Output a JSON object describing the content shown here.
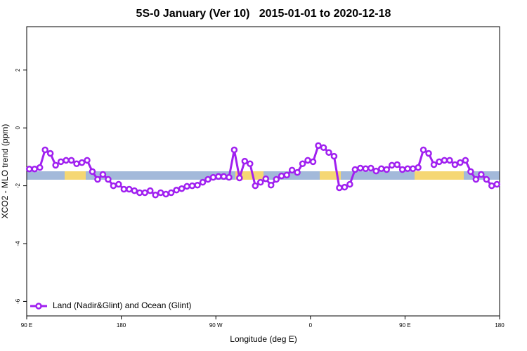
{
  "chart_data": {
    "type": "line",
    "title": "5S-0 January (Ver 10)   2015-01-01 to 2020-12-18",
    "xlabel": "Longitude (deg E)",
    "ylabel": "XCO2 - MLO trend (ppm)",
    "xlim": [
      90,
      540
    ],
    "xticks": [
      {
        "value": 90,
        "label": "90 E"
      },
      {
        "value": 180,
        "label": "180"
      },
      {
        "value": 270,
        "label": "90 W"
      },
      {
        "value": 360,
        "label": "0"
      },
      {
        "value": 450,
        "label": "90 E"
      },
      {
        "value": 540,
        "label": "180"
      }
    ],
    "ylim": [
      -6.5,
      3.5
    ],
    "yticks": [
      -6,
      -4,
      -2,
      0,
      2
    ],
    "legend": "bottomleft",
    "x": [
      92.5,
      97.5,
      102.5,
      107.5,
      112.5,
      117.5,
      122.5,
      127.5,
      132.5,
      137.5,
      142.5,
      147.5,
      152.5,
      157.5,
      162.5,
      167.5,
      172.5,
      177.5,
      182.5,
      187.5,
      192.5,
      197.5,
      202.5,
      207.5,
      212.5,
      217.5,
      222.5,
      227.5,
      232.5,
      237.5,
      242.5,
      247.5,
      252.5,
      257.5,
      262.5,
      267.5,
      272.5,
      277.5,
      282.5,
      287.5,
      292.5,
      297.5,
      302.5,
      307.5,
      312.5,
      317.5,
      322.5,
      327.5,
      332.5,
      337.5,
      342.5,
      347.5,
      352.5,
      357.5,
      362.5,
      367.5,
      372.5,
      377.5,
      382.5,
      387.5,
      392.5,
      397.5,
      402.5,
      407.5,
      412.5,
      417.5,
      422.5,
      427.5,
      432.5,
      437.5,
      442.5,
      447.5,
      452.5,
      457.5,
      462.5,
      467.5,
      472.5,
      477.5,
      482.5,
      487.5,
      492.5,
      497.5,
      502.5,
      507.5,
      512.5,
      517.5,
      522.5,
      527.5,
      532.5,
      537.5
    ],
    "series": [
      {
        "name": "Land (Nadir&Glint) and Ocean (Glint)",
        "color": "#a020f0",
        "values": [
          -1.42,
          -1.42,
          -1.37,
          -0.76,
          -0.88,
          -1.29,
          -1.17,
          -1.12,
          -1.12,
          -1.24,
          -1.2,
          -1.12,
          -1.51,
          -1.78,
          -1.61,
          -1.78,
          -2.0,
          -1.95,
          -2.12,
          -2.12,
          -2.17,
          -2.24,
          -2.24,
          -2.17,
          -2.32,
          -2.24,
          -2.29,
          -2.24,
          -2.15,
          -2.1,
          -2.02,
          -2.0,
          -1.98,
          -1.88,
          -1.78,
          -1.71,
          -1.68,
          -1.68,
          -1.71,
          -0.76,
          -1.73,
          -1.15,
          -1.24,
          -2.0,
          -1.88,
          -1.76,
          -1.98,
          -1.78,
          -1.66,
          -1.63,
          -1.46,
          -1.54,
          -1.24,
          -1.12,
          -1.17,
          -0.61,
          -0.68,
          -0.85,
          -0.98,
          -2.07,
          -2.05,
          -1.95,
          -1.44,
          -1.39,
          -1.41,
          -1.39,
          -1.49,
          -1.41,
          -1.44,
          -1.29,
          -1.27,
          -1.44,
          -1.41,
          -1.41,
          -1.37,
          -0.76,
          -0.88,
          -1.27,
          -1.17,
          -1.12,
          -1.12,
          -1.27,
          -1.2,
          -1.12,
          -1.51,
          -1.78,
          -1.61,
          -1.78,
          -2.0,
          -1.95
        ]
      }
    ]
  }
}
